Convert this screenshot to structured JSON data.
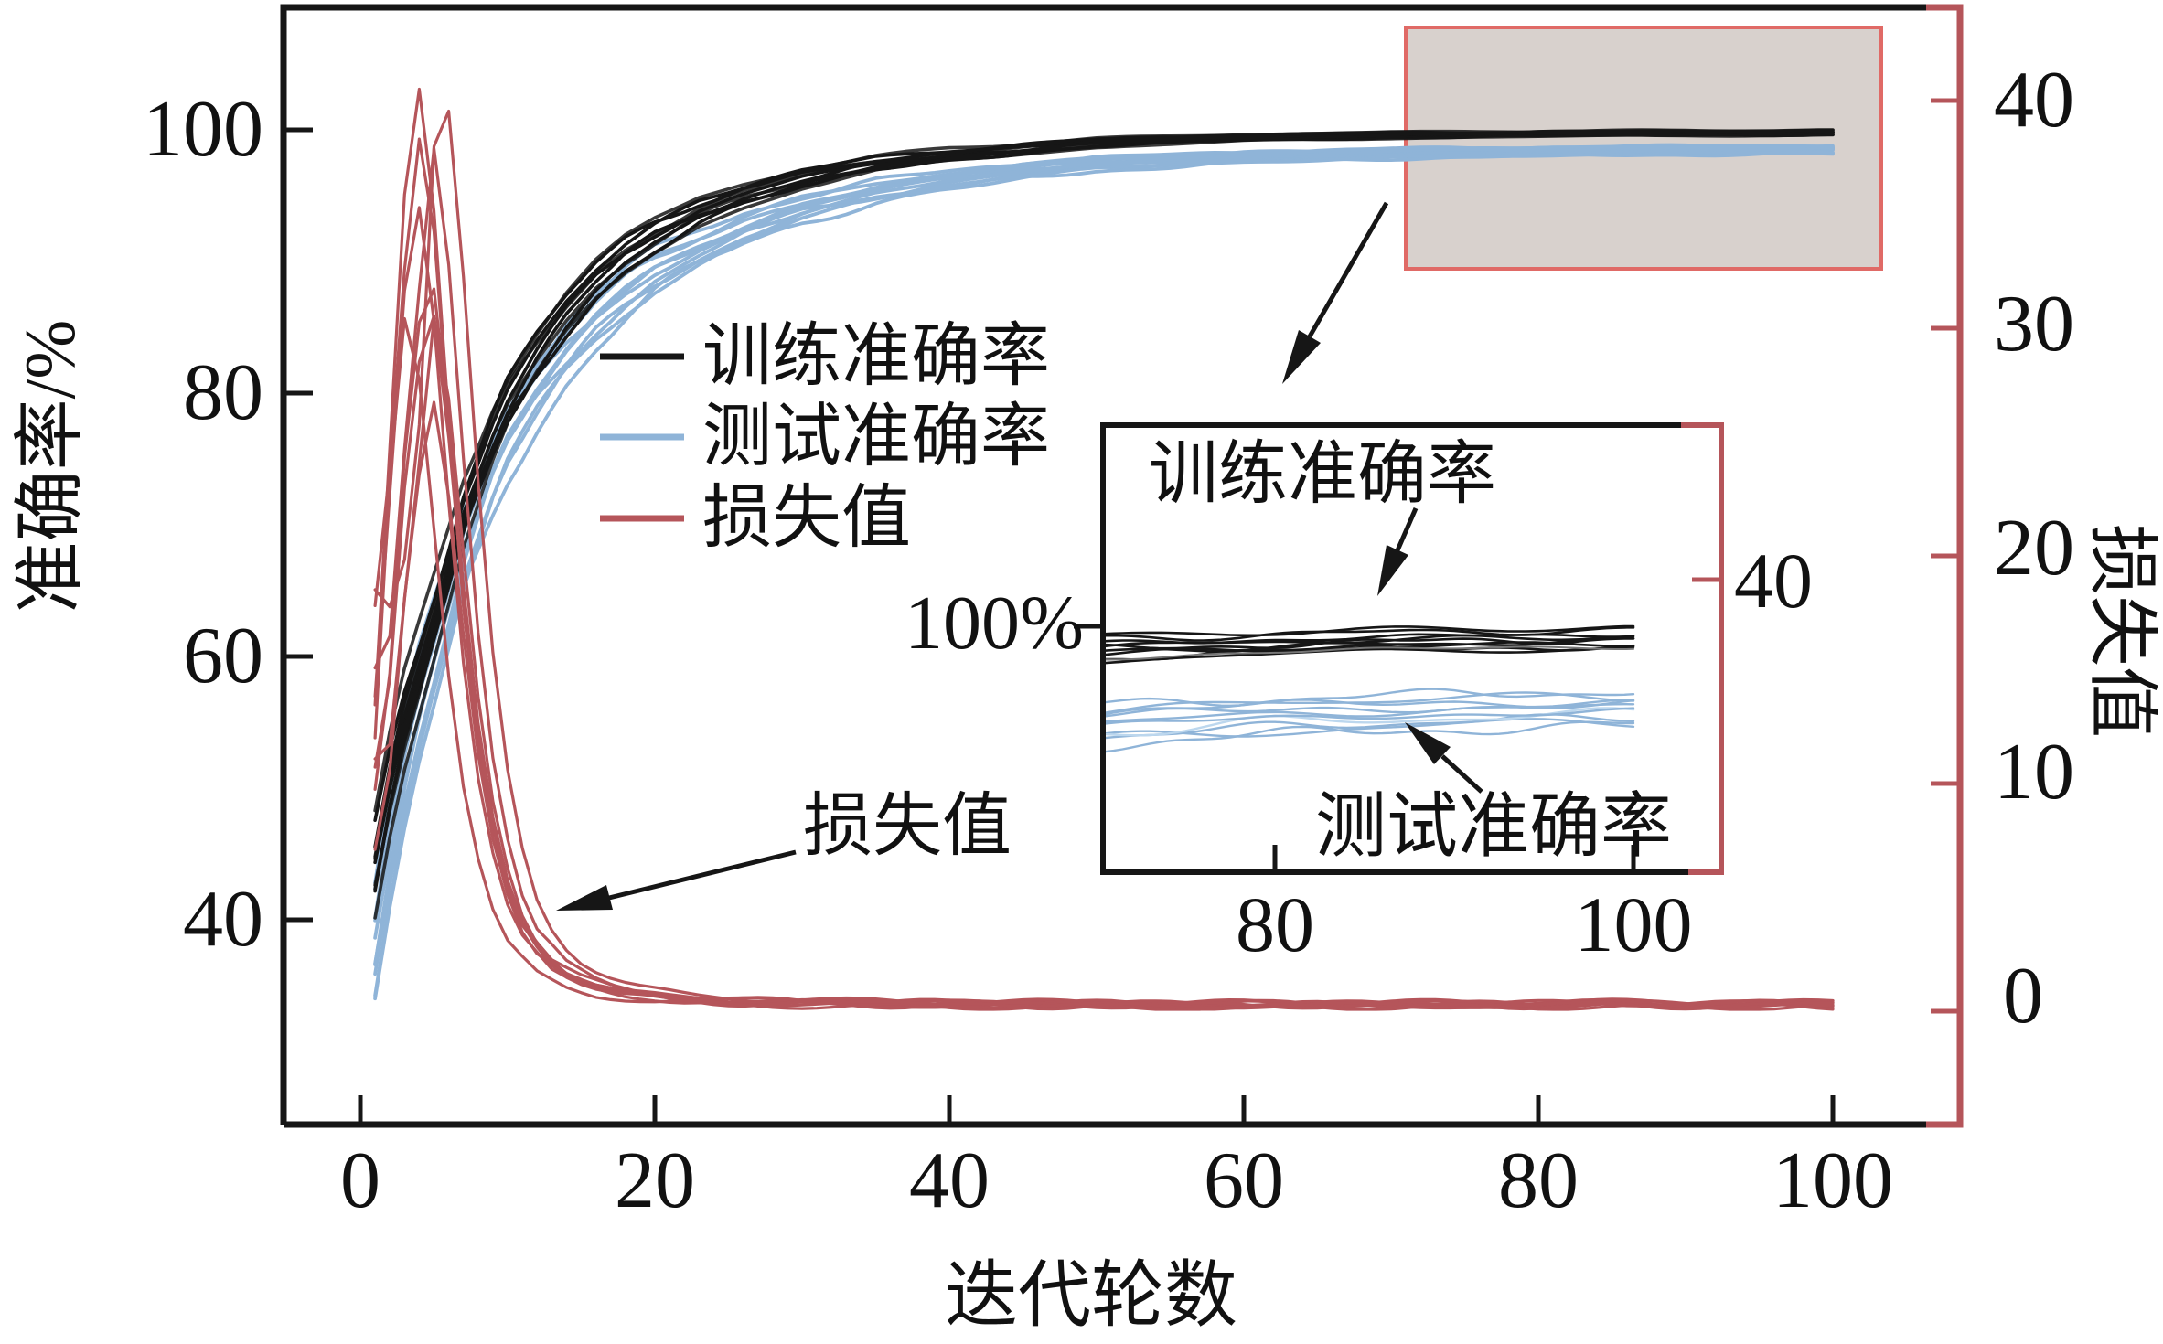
{
  "palette": {
    "ink": "#161616",
    "train_black": "#161616",
    "test_blue": "#8fb4d8",
    "loss_red": "#b5555a",
    "highlight_fill": "#d8d1cd",
    "highlight_border": "#e06a66",
    "inset_right_spine": "#b5555a",
    "background": "#ffffff"
  },
  "axes": {
    "left": {
      "label": "准确率/%",
      "ticks": [
        "100",
        "80",
        "60",
        "40"
      ]
    },
    "right": {
      "label": "损失值",
      "ticks": [
        "40",
        "30",
        "20",
        "10",
        "0"
      ]
    },
    "x": {
      "label": "迭代轮数",
      "ticks": [
        "0",
        "20",
        "40",
        "60",
        "80",
        "100"
      ]
    }
  },
  "legend": {
    "items": [
      {
        "label": "训练准确率",
        "color": "#161616"
      },
      {
        "label": "测试准确率",
        "color": "#8fb4d8"
      },
      {
        "label": "损失值",
        "color": "#b5555a"
      }
    ]
  },
  "annotations": {
    "loss_pointer_label": "损失值",
    "inset_train_label": "训练准确率",
    "inset_test_label": "测试准确率",
    "inset_left_tick_label": "100%",
    "inset_right_tick_label": "40",
    "inset_x_ticks": [
      "80",
      "100"
    ]
  },
  "chart_data": {
    "type": "line",
    "title": "",
    "xlabel": "迭代轮数",
    "x_range": [
      0,
      100
    ],
    "left_axis": {
      "label": "准确率/%",
      "ticks": [
        100,
        80,
        60,
        40
      ],
      "approx_lim": [
        26,
        109
      ]
    },
    "right_axis": {
      "label": "损失值",
      "ticks": [
        40,
        30,
        20,
        10,
        0
      ],
      "approx_lim": [
        -5,
        43
      ]
    },
    "grid": false,
    "legend_position": "upper-center-left",
    "n_runs": 10,
    "series": [
      {
        "name": "训练准确率",
        "axis": "left",
        "color": "#161616",
        "keypoints": [
          [
            1,
            44
          ],
          [
            2,
            50
          ],
          [
            3,
            55
          ],
          [
            4,
            59
          ],
          [
            5,
            63
          ],
          [
            6,
            67
          ],
          [
            7,
            71
          ],
          [
            8,
            74
          ],
          [
            9,
            77
          ],
          [
            10,
            79.5
          ],
          [
            12,
            83
          ],
          [
            14,
            86
          ],
          [
            16,
            88.5
          ],
          [
            18,
            90.5
          ],
          [
            20,
            92
          ],
          [
            23,
            93.8
          ],
          [
            26,
            95
          ],
          [
            30,
            96.3
          ],
          [
            35,
            97.4
          ],
          [
            40,
            98.1
          ],
          [
            45,
            98.6
          ],
          [
            50,
            99.0
          ],
          [
            60,
            99.4
          ],
          [
            70,
            99.6
          ],
          [
            80,
            99.7
          ],
          [
            90,
            99.75
          ],
          [
            100,
            99.8
          ]
        ],
        "run_spread_early": 3.5,
        "run_spread_late": 0.18
      },
      {
        "name": "测试准确率",
        "axis": "left",
        "color": "#8fb4d8",
        "keypoints": [
          [
            1,
            38
          ],
          [
            2,
            45
          ],
          [
            3,
            51
          ],
          [
            4,
            56
          ],
          [
            5,
            60
          ],
          [
            6,
            64
          ],
          [
            7,
            68
          ],
          [
            8,
            71
          ],
          [
            9,
            74
          ],
          [
            10,
            76.5
          ],
          [
            12,
            80
          ],
          [
            14,
            83
          ],
          [
            16,
            85.5
          ],
          [
            18,
            87.5
          ],
          [
            20,
            89.2
          ],
          [
            23,
            91
          ],
          [
            26,
            92.5
          ],
          [
            30,
            94
          ],
          [
            35,
            95.3
          ],
          [
            40,
            96.2
          ],
          [
            45,
            96.9
          ],
          [
            50,
            97.4
          ],
          [
            60,
            97.9
          ],
          [
            70,
            98.2
          ],
          [
            80,
            98.35
          ],
          [
            90,
            98.45
          ],
          [
            100,
            98.5
          ]
        ],
        "run_spread_early": 4.5,
        "run_spread_late": 0.3
      },
      {
        "name": "损失值",
        "axis": "right",
        "color": "#b5555a",
        "keypoints": [
          [
            1,
            14
          ],
          [
            2,
            28
          ],
          [
            3,
            36
          ],
          [
            4,
            32
          ],
          [
            5,
            24
          ],
          [
            6,
            16.5
          ],
          [
            7,
            11
          ],
          [
            8,
            7.5
          ],
          [
            9,
            5
          ],
          [
            10,
            3.5
          ],
          [
            12,
            2
          ],
          [
            14,
            1.3
          ],
          [
            16,
            0.9
          ],
          [
            18,
            0.7
          ],
          [
            20,
            0.55
          ],
          [
            25,
            0.4
          ],
          [
            30,
            0.35
          ],
          [
            40,
            0.3
          ],
          [
            50,
            0.28
          ],
          [
            60,
            0.27
          ],
          [
            80,
            0.3
          ],
          [
            100,
            0.27
          ]
        ],
        "peak_value_range": [
          28,
          40.5
        ],
        "flat_value": 0.3
      }
    ],
    "inset": {
      "description": "zoom of final epochs of accuracy curves",
      "x_ticks": [
        80,
        100
      ],
      "x_range_shown": [
        70.4,
        104.9
      ],
      "left_tick_value": 100,
      "right_tick_value": 40,
      "train_final_band_pct": [
        99.5,
        99.95
      ],
      "test_final_band_pct": [
        98.2,
        98.8
      ]
    },
    "highlight_region": {
      "epoch_range": [
        71,
        103
      ],
      "accuracy_range_pct": [
        89.5,
        107.5
      ]
    }
  }
}
